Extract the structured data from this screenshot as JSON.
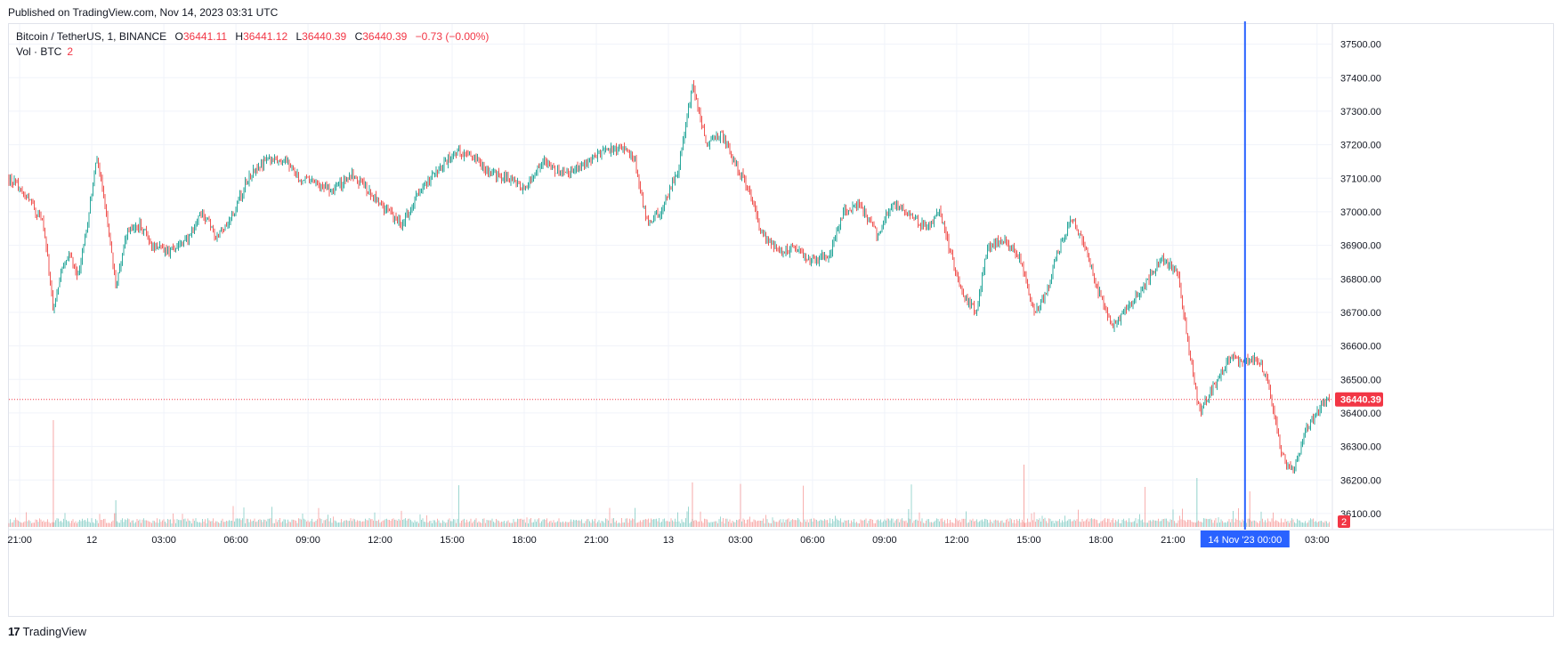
{
  "header": {
    "published": "Published on TradingView.com, Nov 14, 2023 03:31 UTC"
  },
  "legend": {
    "symbol": "Bitcoin / TetherUS, 1, BINANCE",
    "o_label": "O",
    "o_value": "36441.11",
    "h_label": "H",
    "h_value": "36441.12",
    "l_label": "L",
    "l_value": "36440.39",
    "c_label": "C",
    "c_value": "36440.39",
    "change": "−0.73 (−0.00%)"
  },
  "volume_legend": {
    "label": "Vol · BTC",
    "value": "2"
  },
  "footer": {
    "brand": "TradingView",
    "logo": "17"
  },
  "colors": {
    "up": "#26a69a",
    "down": "#ef5350",
    "crosshair": "#2962ff",
    "price": "#f23645"
  },
  "chart_data": {
    "type": "candlestick",
    "title": "Bitcoin / TetherUS, 1, BINANCE",
    "y_ticks": [
      "37500.00",
      "37400.00",
      "37300.00",
      "37200.00",
      "37100.00",
      "37000.00",
      "36900.00",
      "36800.00",
      "36700.00",
      "36600.00",
      "36500.00",
      "36400.00",
      "36300.00",
      "36200.00",
      "36100.00"
    ],
    "ylim": [
      36060,
      37560
    ],
    "x_ticks": [
      {
        "label": "21:00",
        "t": 0
      },
      {
        "label": "12",
        "t": 3
      },
      {
        "label": "03:00",
        "t": 6
      },
      {
        "label": "06:00",
        "t": 9
      },
      {
        "label": "09:00",
        "t": 12
      },
      {
        "label": "12:00",
        "t": 15
      },
      {
        "label": "15:00",
        "t": 18
      },
      {
        "label": "18:00",
        "t": 21
      },
      {
        "label": "21:00",
        "t": 24
      },
      {
        "label": "13",
        "t": 27
      },
      {
        "label": "03:00",
        "t": 30
      },
      {
        "label": "06:00",
        "t": 33
      },
      {
        "label": "09:00",
        "t": 36
      },
      {
        "label": "12:00",
        "t": 39
      },
      {
        "label": "15:00",
        "t": 42
      },
      {
        "label": "18:00",
        "t": 45
      },
      {
        "label": "21:00",
        "t": 48
      },
      {
        "label": "03:00",
        "t": 54
      }
    ],
    "xlim": [
      -0.45,
      54.6
    ],
    "price_path": [
      [
        -0.45,
        37100
      ],
      [
        0.3,
        37050
      ],
      [
        1.0,
        36960
      ],
      [
        1.4,
        36700
      ],
      [
        1.7,
        36820
      ],
      [
        2.1,
        36880
      ],
      [
        2.4,
        36800
      ],
      [
        2.8,
        36950
      ],
      [
        3.2,
        37170
      ],
      [
        3.6,
        37000
      ],
      [
        4.0,
        36780
      ],
      [
        4.5,
        36950
      ],
      [
        5.0,
        36960
      ],
      [
        5.5,
        36900
      ],
      [
        6.2,
        36880
      ],
      [
        7.0,
        36920
      ],
      [
        7.6,
        37000
      ],
      [
        8.2,
        36920
      ],
      [
        8.8,
        36980
      ],
      [
        9.5,
        37100
      ],
      [
        10.2,
        37150
      ],
      [
        11.0,
        37160
      ],
      [
        11.6,
        37100
      ],
      [
        12.3,
        37090
      ],
      [
        13.0,
        37060
      ],
      [
        13.8,
        37110
      ],
      [
        14.6,
        37060
      ],
      [
        15.3,
        37000
      ],
      [
        15.9,
        36960
      ],
      [
        16.6,
        37060
      ],
      [
        17.5,
        37130
      ],
      [
        18.1,
        37180
      ],
      [
        18.8,
        37170
      ],
      [
        19.5,
        37120
      ],
      [
        20.3,
        37100
      ],
      [
        21.0,
        37070
      ],
      [
        21.8,
        37150
      ],
      [
        22.5,
        37110
      ],
      [
        23.3,
        37130
      ],
      [
        24.0,
        37170
      ],
      [
        25.0,
        37190
      ],
      [
        25.6,
        37150
      ],
      [
        26.1,
        36970
      ],
      [
        26.7,
        37000
      ],
      [
        27.4,
        37120
      ],
      [
        28.0,
        37380
      ],
      [
        28.6,
        37200
      ],
      [
        29.2,
        37230
      ],
      [
        29.8,
        37140
      ],
      [
        30.4,
        37060
      ],
      [
        30.9,
        36930
      ],
      [
        31.6,
        36880
      ],
      [
        32.3,
        36890
      ],
      [
        33.0,
        36850
      ],
      [
        33.7,
        36870
      ],
      [
        34.3,
        37000
      ],
      [
        35.0,
        37020
      ],
      [
        35.7,
        36930
      ],
      [
        36.3,
        37020
      ],
      [
        37.0,
        37000
      ],
      [
        37.7,
        36950
      ],
      [
        38.3,
        37000
      ],
      [
        38.8,
        36860
      ],
      [
        39.3,
        36750
      ],
      [
        39.8,
        36700
      ],
      [
        40.3,
        36900
      ],
      [
        41.0,
        36920
      ],
      [
        41.7,
        36850
      ],
      [
        42.2,
        36700
      ],
      [
        42.7,
        36750
      ],
      [
        43.2,
        36880
      ],
      [
        43.8,
        36980
      ],
      [
        44.4,
        36880
      ],
      [
        44.9,
        36760
      ],
      [
        45.5,
        36660
      ],
      [
        46.2,
        36720
      ],
      [
        46.9,
        36790
      ],
      [
        47.5,
        36860
      ],
      [
        48.2,
        36820
      ],
      [
        48.6,
        36620
      ],
      [
        49.1,
        36400
      ],
      [
        49.7,
        36480
      ],
      [
        50.3,
        36560
      ],
      [
        51.0,
        36560
      ],
      [
        51.6,
        36560
      ],
      [
        52.0,
        36480
      ],
      [
        52.5,
        36280
      ],
      [
        53.0,
        36220
      ],
      [
        53.6,
        36360
      ],
      [
        54.2,
        36420
      ],
      [
        54.6,
        36440
      ]
    ],
    "last_price": "36440.39",
    "last_value": 36440.39,
    "crosshair": {
      "label": "14 Nov '23   00:00",
      "t": 51.0
    },
    "volume_last": "2"
  }
}
